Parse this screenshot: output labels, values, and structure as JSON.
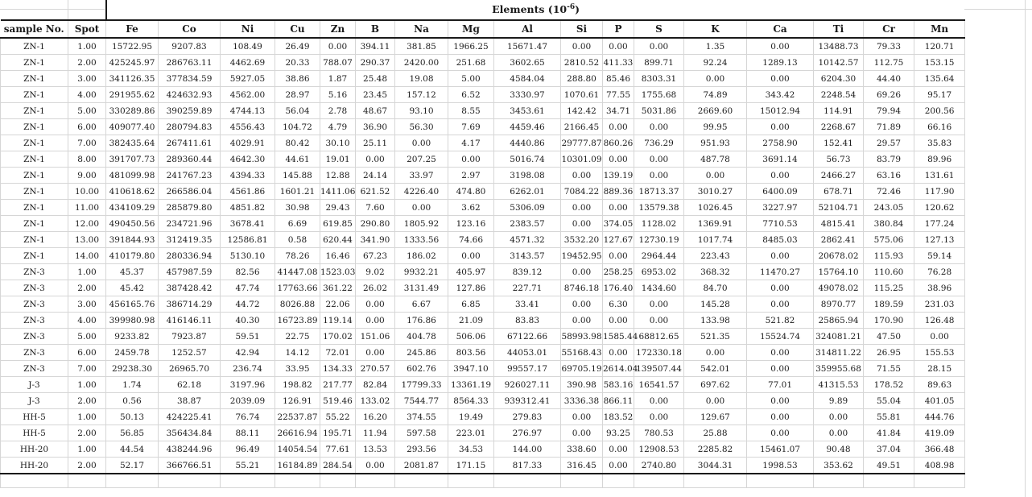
{
  "table": {
    "title": {
      "prefix": "Elements (10",
      "sup": "-6",
      "suffix": ")"
    },
    "columns": [
      "sample No.",
      "Spot",
      "Fe",
      "Co",
      "Ni",
      "Cu",
      "Zn",
      "B",
      "Na",
      "Mg",
      "Al",
      "Si",
      "P",
      "S",
      "K",
      "Ca",
      "Ti",
      "Cr",
      "Mn"
    ],
    "rows": [
      [
        "ZN-1",
        "1.00",
        "15722.95",
        "9207.83",
        "108.49",
        "26.49",
        "0.00",
        "394.11",
        "381.85",
        "1966.25",
        "15671.47",
        "0.00",
        "0.00",
        "0.00",
        "1.35",
        "0.00",
        "13488.73",
        "79.33",
        "120.71"
      ],
      [
        "ZN-1",
        "2.00",
        "425245.97",
        "286763.11",
        "4462.69",
        "20.33",
        "788.07",
        "290.37",
        "2420.00",
        "251.68",
        "3602.65",
        "2810.52",
        "411.33",
        "899.71",
        "92.24",
        "1289.13",
        "10142.57",
        "112.75",
        "153.15"
      ],
      [
        "ZN-1",
        "3.00",
        "341126.35",
        "377834.59",
        "5927.05",
        "38.86",
        "1.87",
        "25.48",
        "19.08",
        "5.00",
        "4584.04",
        "288.80",
        "85.46",
        "8303.31",
        "0.00",
        "0.00",
        "6204.30",
        "44.40",
        "135.64"
      ],
      [
        "ZN-1",
        "4.00",
        "291955.62",
        "424632.93",
        "4562.00",
        "28.97",
        "5.16",
        "23.45",
        "157.12",
        "6.52",
        "3330.97",
        "1070.61",
        "77.55",
        "1755.68",
        "74.89",
        "343.42",
        "2248.54",
        "69.26",
        "95.17"
      ],
      [
        "ZN-1",
        "5.00",
        "330289.86",
        "390259.89",
        "4744.13",
        "56.04",
        "2.78",
        "48.67",
        "93.10",
        "8.55",
        "3453.61",
        "142.42",
        "34.71",
        "5031.86",
        "2669.60",
        "15012.94",
        "114.91",
        "79.94",
        "200.56"
      ],
      [
        "ZN-1",
        "6.00",
        "409077.40",
        "280794.83",
        "4556.43",
        "104.72",
        "4.79",
        "36.90",
        "56.30",
        "7.69",
        "4459.46",
        "2166.45",
        "0.00",
        "0.00",
        "99.95",
        "0.00",
        "2268.67",
        "71.89",
        "66.16"
      ],
      [
        "ZN-1",
        "7.00",
        "382435.64",
        "267411.61",
        "4029.91",
        "80.42",
        "30.10",
        "25.11",
        "0.00",
        "4.17",
        "4440.86",
        "29777.87",
        "860.26",
        "736.29",
        "951.93",
        "2758.90",
        "152.41",
        "29.57",
        "35.83"
      ],
      [
        "ZN-1",
        "8.00",
        "391707.73",
        "289360.44",
        "4642.30",
        "44.61",
        "19.01",
        "0.00",
        "207.25",
        "0.00",
        "5016.74",
        "10301.09",
        "0.00",
        "0.00",
        "487.78",
        "3691.14",
        "56.73",
        "83.79",
        "89.96"
      ],
      [
        "ZN-1",
        "9.00",
        "481099.98",
        "241767.23",
        "4394.33",
        "145.88",
        "12.88",
        "24.14",
        "33.97",
        "2.97",
        "3198.08",
        "0.00",
        "139.19",
        "0.00",
        "0.00",
        "0.00",
        "2466.27",
        "63.16",
        "131.61"
      ],
      [
        "ZN-1",
        "10.00",
        "410618.62",
        "266586.04",
        "4561.86",
        "1601.21",
        "1411.06",
        "621.52",
        "4226.40",
        "474.80",
        "6262.01",
        "7084.22",
        "889.36",
        "18713.37",
        "3010.27",
        "6400.09",
        "678.71",
        "72.46",
        "117.90"
      ],
      [
        "ZN-1",
        "11.00",
        "434109.29",
        "285879.80",
        "4851.82",
        "30.98",
        "29.43",
        "7.60",
        "0.00",
        "3.62",
        "5306.09",
        "0.00",
        "0.00",
        "13579.38",
        "1026.45",
        "3227.97",
        "52104.71",
        "243.05",
        "120.62"
      ],
      [
        "ZN-1",
        "12.00",
        "490450.56",
        "234721.96",
        "3678.41",
        "6.69",
        "619.85",
        "290.80",
        "1805.92",
        "123.16",
        "2383.57",
        "0.00",
        "374.05",
        "1128.02",
        "1369.91",
        "7710.53",
        "4815.41",
        "380.84",
        "177.24"
      ],
      [
        "ZN-1",
        "13.00",
        "391844.93",
        "312419.35",
        "12586.81",
        "0.58",
        "620.44",
        "341.90",
        "1333.56",
        "74.66",
        "4571.32",
        "3532.20",
        "127.67",
        "12730.19",
        "1017.74",
        "8485.03",
        "2862.41",
        "575.06",
        "127.13"
      ],
      [
        "ZN-1",
        "14.00",
        "410179.80",
        "280336.94",
        "5130.10",
        "78.26",
        "16.46",
        "67.23",
        "186.02",
        "0.00",
        "3143.57",
        "19452.95",
        "0.00",
        "2964.44",
        "223.43",
        "0.00",
        "20678.02",
        "115.93",
        "59.14"
      ],
      [
        "ZN-3",
        "1.00",
        "45.37",
        "457987.59",
        "82.56",
        "41447.08",
        "1523.03",
        "9.02",
        "9932.21",
        "405.97",
        "839.12",
        "0.00",
        "258.25",
        "6953.02",
        "368.32",
        "11470.27",
        "15764.10",
        "110.60",
        "76.28"
      ],
      [
        "ZN-3",
        "2.00",
        "45.42",
        "387428.42",
        "47.74",
        "17763.66",
        "361.22",
        "26.02",
        "3131.49",
        "127.86",
        "227.71",
        "8746.18",
        "176.40",
        "1434.60",
        "84.70",
        "0.00",
        "49078.02",
        "115.25",
        "38.96"
      ],
      [
        "ZN-3",
        "3.00",
        "456165.76",
        "386714.29",
        "44.72",
        "8026.88",
        "22.06",
        "0.00",
        "6.67",
        "6.85",
        "33.41",
        "0.00",
        "6.30",
        "0.00",
        "145.28",
        "0.00",
        "8970.77",
        "189.59",
        "231.03"
      ],
      [
        "ZN-3",
        "4.00",
        "399980.98",
        "416146.11",
        "40.30",
        "16723.89",
        "119.14",
        "0.00",
        "176.86",
        "21.09",
        "83.83",
        "0.00",
        "0.00",
        "0.00",
        "133.98",
        "521.82",
        "25865.94",
        "170.90",
        "126.48"
      ],
      [
        "ZN-3",
        "5.00",
        "9233.82",
        "7923.87",
        "59.51",
        "22.75",
        "170.02",
        "151.06",
        "404.78",
        "506.06",
        "67122.66",
        "58993.98",
        "1585.44",
        "68812.65",
        "521.35",
        "15524.74",
        "324081.21",
        "47.50",
        "0.00"
      ],
      [
        "ZN-3",
        "6.00",
        "2459.78",
        "1252.57",
        "42.94",
        "14.12",
        "72.01",
        "0.00",
        "245.86",
        "803.56",
        "44053.01",
        "55168.43",
        "0.00",
        "172330.18",
        "0.00",
        "0.00",
        "314811.22",
        "26.95",
        "155.53"
      ],
      [
        "ZN-3",
        "7.00",
        "29238.30",
        "26965.70",
        "236.74",
        "33.95",
        "134.33",
        "270.57",
        "602.76",
        "3947.10",
        "99557.17",
        "69705.19",
        "2614.04",
        "139507.44",
        "542.01",
        "0.00",
        "359955.68",
        "71.55",
        "28.15"
      ],
      [
        "J-3",
        "1.00",
        "1.74",
        "62.18",
        "3197.96",
        "198.82",
        "217.77",
        "82.84",
        "17799.33",
        "13361.19",
        "926027.11",
        "390.98",
        "583.16",
        "16541.57",
        "697.62",
        "77.01",
        "41315.53",
        "178.52",
        "89.63"
      ],
      [
        "J-3",
        "2.00",
        "0.56",
        "38.87",
        "2039.09",
        "126.91",
        "519.46",
        "133.02",
        "7544.77",
        "8564.33",
        "939312.41",
        "3336.38",
        "866.11",
        "0.00",
        "0.00",
        "0.00",
        "9.89",
        "55.04",
        "401.05"
      ],
      [
        "HH-5",
        "1.00",
        "50.13",
        "424225.41",
        "76.74",
        "22537.87",
        "55.22",
        "16.20",
        "374.55",
        "19.49",
        "279.83",
        "0.00",
        "183.52",
        "0.00",
        "129.67",
        "0.00",
        "0.00",
        "55.81",
        "444.76"
      ],
      [
        "HH-5",
        "2.00",
        "56.85",
        "356434.84",
        "88.11",
        "26616.94",
        "195.71",
        "11.94",
        "597.58",
        "223.01",
        "276.97",
        "0.00",
        "93.25",
        "780.53",
        "25.88",
        "0.00",
        "0.00",
        "41.84",
        "419.09"
      ],
      [
        "HH-20",
        "1.00",
        "44.54",
        "438244.96",
        "96.49",
        "14054.54",
        "77.61",
        "13.53",
        "293.56",
        "34.53",
        "144.00",
        "338.60",
        "0.00",
        "12908.53",
        "2285.82",
        "15461.07",
        "90.48",
        "37.04",
        "366.48"
      ],
      [
        "HH-20",
        "2.00",
        "52.17",
        "366766.51",
        "55.21",
        "16184.89",
        "284.54",
        "0.00",
        "2081.87",
        "171.15",
        "817.33",
        "316.45",
        "0.00",
        "2740.80",
        "3044.31",
        "1998.53",
        "353.62",
        "49.51",
        "408.98"
      ]
    ]
  },
  "colors": {
    "rule_dark": "#1a1a1a",
    "grid_light": "#d6d6d6",
    "text": "#1b1b1b"
  }
}
